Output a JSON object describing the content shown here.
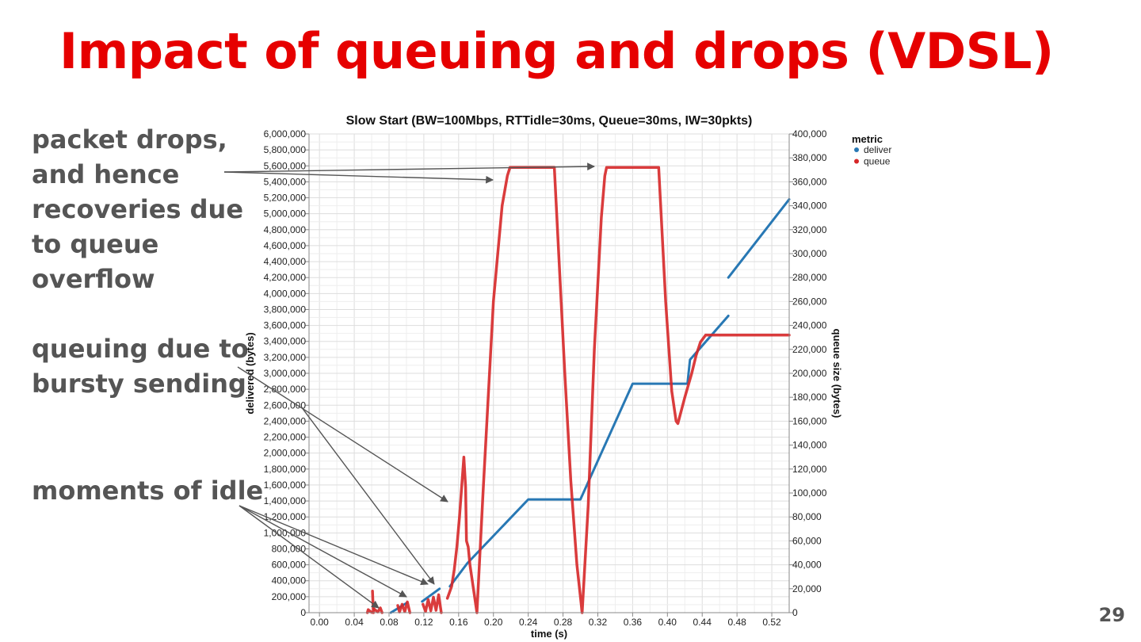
{
  "slide": {
    "title": "Impact of queuing and drops (VDSL)",
    "page_number": "29"
  },
  "annotations": {
    "drops": [
      "packet drops,",
      "and hence",
      "recoveries due",
      "to queue",
      "overflow"
    ],
    "bursty": [
      "queuing due to",
      "bursty sending"
    ],
    "idle": [
      "moments of idle"
    ]
  },
  "chart_data": {
    "type": "line",
    "title": "Slow Start (BW=100Mbps, RTTidle=30ms, Queue=30ms, IW=30pkts)",
    "xlabel": "time (s)",
    "ylabel": "delivered (bytes)",
    "y2label": "queue size (bytes)",
    "xlim": [
      -0.012,
      0.54
    ],
    "ylim": [
      0,
      6000000
    ],
    "y2lim": [
      0,
      400000
    ],
    "x_ticks": [
      0.0,
      0.04,
      0.08,
      0.12,
      0.16,
      0.2,
      0.24,
      0.28,
      0.32,
      0.36,
      0.4,
      0.44,
      0.48,
      0.52
    ],
    "x_tick_labels": [
      "0.00",
      "0.04",
      "0.08",
      "0.12",
      "0.16",
      "0.20",
      "0.24",
      "0.28",
      "0.32",
      "0.36",
      "0.40",
      "0.44",
      "0.48",
      "0.52"
    ],
    "y_ticks": [
      0,
      200000,
      400000,
      600000,
      800000,
      1000000,
      1200000,
      1400000,
      1600000,
      1800000,
      2000000,
      2200000,
      2400000,
      2600000,
      2800000,
      3000000,
      3200000,
      3400000,
      3600000,
      3800000,
      4000000,
      4200000,
      4400000,
      4600000,
      4800000,
      5000000,
      5200000,
      5400000,
      5600000,
      5800000,
      6000000
    ],
    "y_tick_labels": [
      "0",
      "200,000",
      "400,000",
      "600,000",
      "800,000",
      "1,000,000",
      "1,200,000",
      "1,400,000",
      "1,600,000",
      "1,800,000",
      "2,000,000",
      "2,200,000",
      "2,400,000",
      "2,600,000",
      "2,800,000",
      "3,000,000",
      "3,200,000",
      "3,400,000",
      "3,600,000",
      "3,800,000",
      "4,000,000",
      "4,200,000",
      "4,400,000",
      "4,600,000",
      "4,800,000",
      "5,000,000",
      "5,200,000",
      "5,400,000",
      "5,600,000",
      "5,800,000",
      "6,000,000"
    ],
    "y2_ticks": [
      0,
      20000,
      40000,
      60000,
      80000,
      100000,
      120000,
      140000,
      160000,
      180000,
      200000,
      220000,
      240000,
      260000,
      280000,
      300000,
      320000,
      340000,
      360000,
      380000,
      400000
    ],
    "y2_tick_labels": [
      "0",
      "20,000",
      "40,000",
      "60,000",
      "80,000",
      "100,000",
      "120,000",
      "140,000",
      "160,000",
      "180,000",
      "200,000",
      "220,000",
      "240,000",
      "260,000",
      "280,000",
      "300,000",
      "320,000",
      "340,000",
      "360,000",
      "380,000",
      "400,000"
    ],
    "grid": true,
    "legend": {
      "title": "metric",
      "position": "right"
    },
    "series": [
      {
        "name": "deliver",
        "axis": "left",
        "color": "#2878b4",
        "segments": [
          [
            [
              0.082,
              0
            ],
            [
              0.1,
              120000
            ]
          ],
          [
            [
              0.118,
              140000
            ],
            [
              0.138,
              300000
            ]
          ],
          [
            [
              0.15,
              330000
            ],
            [
              0.17,
              620000
            ],
            [
              0.24,
              1420000
            ],
            [
              0.3,
              1420000
            ],
            [
              0.36,
              2870000
            ],
            [
              0.423,
              2870000
            ],
            [
              0.426,
              3170000
            ],
            [
              0.47,
              3720000
            ]
          ],
          [
            [
              0.47,
              4200000
            ],
            [
              0.54,
              5180000
            ]
          ]
        ]
      },
      {
        "name": "queue",
        "axis": "right",
        "color": "#d62728",
        "segments": [
          [
            [
              0.055,
              0
            ],
            [
              0.056,
              2500
            ],
            [
              0.06,
              200
            ]
          ],
          [
            [
              0.061,
              18000
            ],
            [
              0.062,
              0
            ]
          ],
          [
            [
              0.063,
              3000
            ],
            [
              0.067,
              500
            ],
            [
              0.07,
              4000
            ],
            [
              0.072,
              0
            ]
          ],
          [
            [
              0.09,
              6000
            ],
            [
              0.092,
              500
            ],
            [
              0.095,
              7000
            ],
            [
              0.098,
              800
            ],
            [
              0.101,
              9000
            ],
            [
              0.104,
              0
            ]
          ],
          [
            [
              0.119,
              7000
            ],
            [
              0.122,
              1000
            ],
            [
              0.125,
              11000
            ],
            [
              0.128,
              1500
            ],
            [
              0.131,
              13000
            ],
            [
              0.134,
              2000
            ],
            [
              0.137,
              15000
            ],
            [
              0.14,
              0
            ]
          ],
          [
            [
              0.147,
              12000
            ],
            [
              0.152,
              22000
            ],
            [
              0.155,
              36000
            ],
            [
              0.158,
              55000
            ],
            [
              0.161,
              80000
            ],
            [
              0.164,
              110000
            ],
            [
              0.166,
              130000
            ],
            [
              0.168,
              105000
            ],
            [
              0.169,
              60000
            ],
            [
              0.171,
              55000
            ],
            [
              0.173,
              40000
            ],
            [
              0.181,
              0
            ],
            [
              0.188,
              100000
            ],
            [
              0.2,
              260000
            ],
            [
              0.21,
              340000
            ],
            [
              0.216,
              365000
            ],
            [
              0.219,
              372000
            ],
            [
              0.226,
              372000
            ],
            [
              0.25,
              372000
            ],
            [
              0.27,
              372000
            ],
            [
              0.282,
              200000
            ],
            [
              0.289,
              110000
            ],
            [
              0.296,
              40000
            ],
            [
              0.302,
              0
            ],
            [
              0.309,
              90000
            ],
            [
              0.316,
              220000
            ],
            [
              0.324,
              330000
            ],
            [
              0.328,
              365000
            ],
            [
              0.33,
              372000
            ],
            [
              0.35,
              372000
            ],
            [
              0.37,
              372000
            ],
            [
              0.39,
              372000
            ],
            [
              0.398,
              260000
            ],
            [
              0.405,
              185000
            ],
            [
              0.41,
              160000
            ],
            [
              0.412,
              158000
            ],
            [
              0.42,
              180000
            ],
            [
              0.428,
              200000
            ],
            [
              0.433,
              215000
            ],
            [
              0.438,
              226000
            ],
            [
              0.444,
              232000
            ],
            [
              0.47,
              232000
            ],
            [
              0.5,
              232000
            ],
            [
              0.54,
              232000
            ]
          ]
        ]
      }
    ]
  }
}
